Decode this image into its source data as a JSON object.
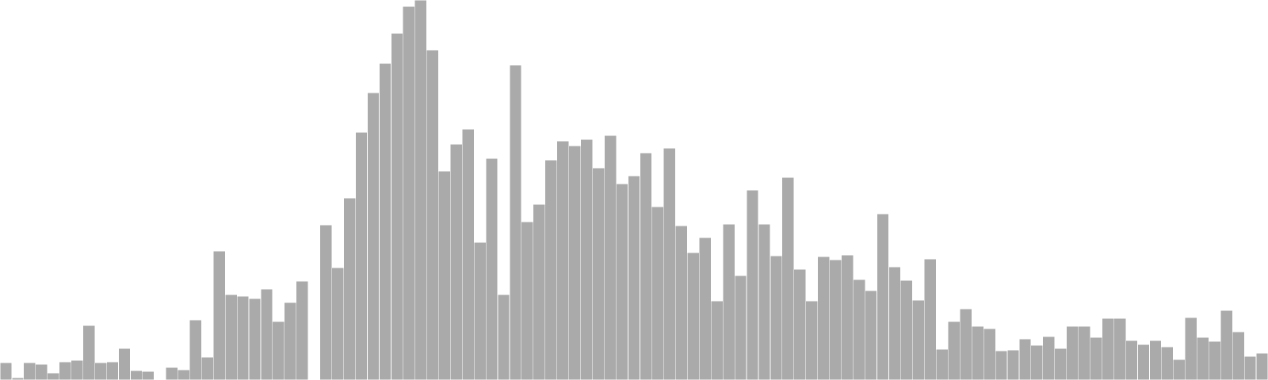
{
  "chart_data": {
    "type": "bar",
    "title": "",
    "xlabel": "",
    "ylabel": "",
    "ylim": [
      0,
      480
    ],
    "grid": false,
    "legend": "none",
    "bar_color": "#aaaaaa",
    "bar_edge_color": "#ffffff",
    "values": [
      22,
      3,
      22,
      20,
      9,
      23,
      25,
      69,
      22,
      23,
      40,
      12,
      11,
      0,
      16,
      13,
      76,
      29,
      163,
      108,
      106,
      103,
      115,
      74,
      98,
      125,
      0,
      196,
      142,
      230,
      313,
      363,
      400,
      438,
      472,
      480,
      417,
      264,
      298,
      317,
      174,
      280,
      108,
      398,
      200,
      222,
      278,
      302,
      296,
      304,
      268,
      309,
      248,
      258,
      287,
      219,
      293,
      195,
      161,
      180,
      100,
      197,
      132,
      240,
      197,
      157,
      256,
      140,
      100,
      156,
      152,
      158,
      127,
      113,
      210,
      143,
      126,
      101,
      153,
      39,
      74,
      90,
      68,
      65,
      37,
      38,
      52,
      44,
      55,
      40,
      68,
      68,
      54,
      78,
      78,
      50,
      45,
      50,
      42,
      26,
      79,
      54,
      49,
      88,
      61,
      30,
      34
    ]
  }
}
